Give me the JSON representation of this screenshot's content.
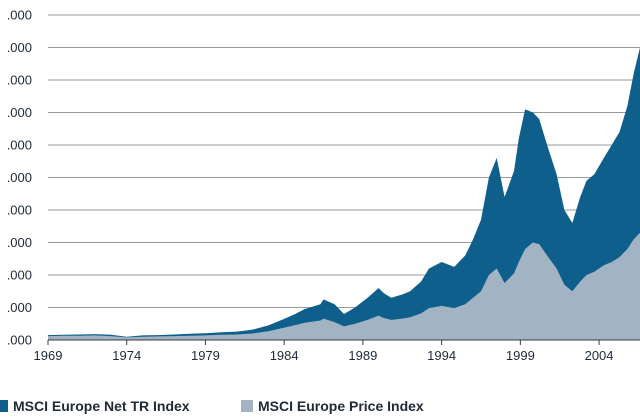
{
  "chart_data": {
    "type": "area",
    "title": "",
    "xlabel": "",
    "ylabel": "",
    "x_ticks": [
      "1969",
      "1974",
      "1979",
      "1984",
      "1989",
      "1994",
      "1999",
      "2004"
    ],
    "y_tick_labels": [
      ".000",
      ".000",
      ".000",
      ".000",
      ".000",
      ".000",
      ".000",
      ".000",
      ".000",
      ".000",
      ".000"
    ],
    "xlim": [
      1969,
      2006.6
    ],
    "ylim": [
      0,
      10
    ],
    "grid": true,
    "legend_position": "bottom",
    "series": [
      {
        "name": "MSCI Europe Net TR Index",
        "color": "#0f5f8d",
        "x": [
          1969,
          1970,
          1971,
          1972,
          1973,
          1974,
          1975,
          1976,
          1977,
          1978,
          1979,
          1980,
          1981,
          1982,
          1983,
          1984,
          1984.7,
          1985.3,
          1986.3,
          1986.5,
          1987.2,
          1987.8,
          1988.5,
          1989.3,
          1990,
          1990.3,
          1990.8,
          1991.5,
          1992,
          1992.7,
          1993.2,
          1994,
          1994.8,
          1995.5,
          1996,
          1996.5,
          1997,
          1997.5,
          1998,
          1998.6,
          1998.9,
          1999.3,
          1999.8,
          2000.2,
          2000.7,
          2001.3,
          2001.8,
          2002.3,
          2002.8,
          2003.2,
          2003.7,
          2004.3,
          2004.8,
          2005.3,
          2005.8,
          2006.2,
          2006.6
        ],
        "values": [
          0.15,
          0.16,
          0.17,
          0.18,
          0.16,
          0.1,
          0.14,
          0.15,
          0.17,
          0.19,
          0.21,
          0.24,
          0.26,
          0.32,
          0.45,
          0.65,
          0.8,
          0.95,
          1.1,
          1.25,
          1.1,
          0.8,
          1.0,
          1.3,
          1.6,
          1.45,
          1.3,
          1.4,
          1.5,
          1.8,
          2.2,
          2.4,
          2.25,
          2.6,
          3.1,
          3.7,
          5.0,
          5.6,
          4.4,
          5.2,
          6.2,
          7.1,
          7.0,
          6.8,
          6.0,
          5.1,
          4.0,
          3.6,
          4.4,
          4.9,
          5.1,
          5.6,
          6.0,
          6.4,
          7.2,
          8.2,
          9.0
        ]
      },
      {
        "name": "MSCI Europe Price Index",
        "color": "#a2b3c3",
        "x": [
          1969,
          1970,
          1971,
          1972,
          1973,
          1974,
          1975,
          1976,
          1977,
          1978,
          1979,
          1980,
          1981,
          1982,
          1983,
          1984,
          1984.7,
          1985.3,
          1986.3,
          1986.5,
          1987.2,
          1987.8,
          1988.5,
          1989.3,
          1990,
          1990.3,
          1990.8,
          1991.5,
          1992,
          1992.7,
          1993.2,
          1994,
          1994.8,
          1995.5,
          1996,
          1996.5,
          1997,
          1997.5,
          1998,
          1998.6,
          1998.9,
          1999.3,
          1999.8,
          2000.2,
          2000.7,
          2001.3,
          2001.8,
          2002.3,
          2002.8,
          2003.2,
          2003.7,
          2004.3,
          2004.8,
          2005.3,
          2005.8,
          2006.2,
          2006.6
        ],
        "values": [
          0.12,
          0.13,
          0.13,
          0.14,
          0.12,
          0.08,
          0.1,
          0.11,
          0.12,
          0.13,
          0.14,
          0.16,
          0.17,
          0.2,
          0.27,
          0.38,
          0.46,
          0.53,
          0.6,
          0.66,
          0.55,
          0.42,
          0.5,
          0.62,
          0.75,
          0.68,
          0.62,
          0.66,
          0.7,
          0.82,
          0.98,
          1.05,
          0.98,
          1.1,
          1.3,
          1.5,
          2.0,
          2.2,
          1.75,
          2.05,
          2.4,
          2.8,
          3.0,
          2.95,
          2.6,
          2.2,
          1.7,
          1.5,
          1.8,
          2.0,
          2.1,
          2.3,
          2.4,
          2.55,
          2.8,
          3.1,
          3.3
        ]
      }
    ]
  }
}
